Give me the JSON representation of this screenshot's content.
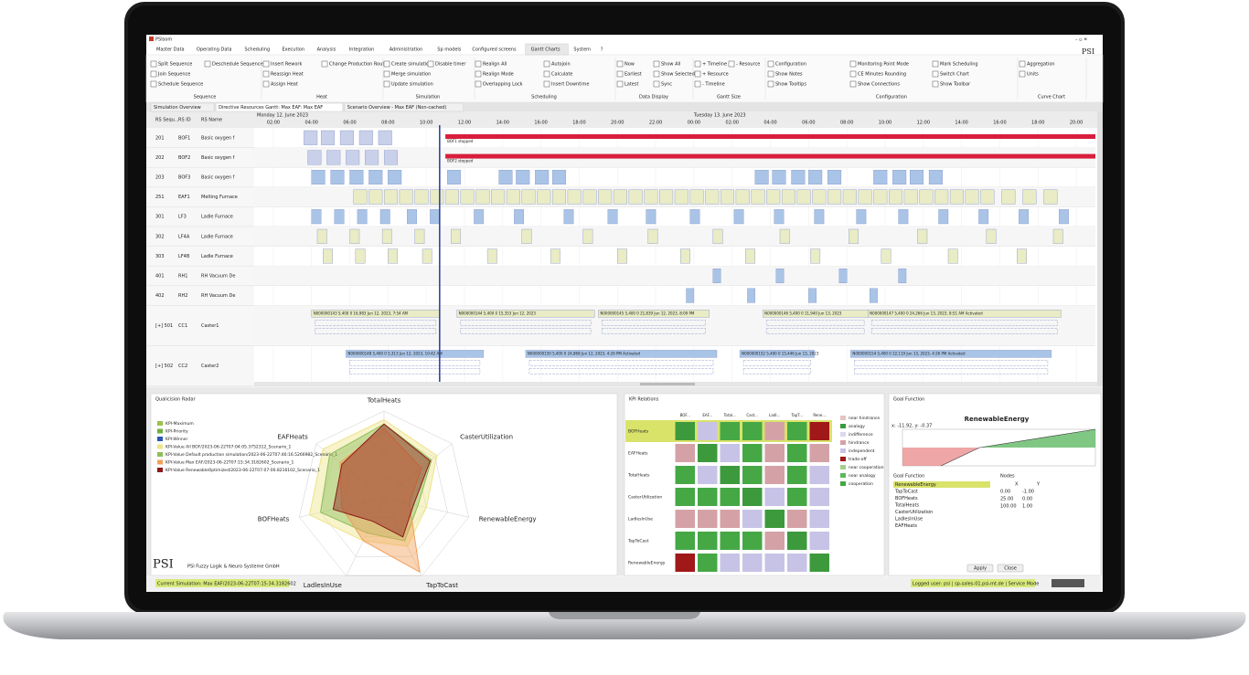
{
  "window": {
    "title": "PSIsom"
  },
  "menu": {
    "tabs": [
      "Master Data",
      "Operating Data",
      "Scheduling",
      "Execution",
      "Analysis",
      "Integration",
      "Administration",
      "Sp models",
      "Configured screens",
      "Gantt Charts",
      "System",
      "?"
    ],
    "active": 9
  },
  "ribbon": {
    "groups": [
      {
        "label": "Sequence",
        "items": [
          "Split Sequence",
          "Join Sequence",
          "Schedule Sequence",
          "Deschedule Sequence"
        ]
      },
      {
        "label": "Heat",
        "items": [
          "Insert Rework",
          "Reassign Heat",
          "Assign Heat",
          "Change Production Route"
        ]
      },
      {
        "label": "Simulation",
        "items": [
          "Create simulation",
          "Merge simulation",
          "Update simulation",
          "Disable timer"
        ]
      },
      {
        "label": "Scheduling",
        "items": [
          "Realign All",
          "Realign Mode",
          "Overlapping Lock",
          "Autojoin",
          "Calculate",
          "Insert Downtime"
        ]
      },
      {
        "label": "Data Display",
        "items": [
          "Now",
          "Earliest",
          "Latest",
          "Show All",
          "Show Selected",
          "Sync"
        ]
      },
      {
        "label": "Gantt Size",
        "items": [
          "+ Timeline",
          "+ Resource",
          "- Timeline",
          "- Resource"
        ]
      },
      {
        "label": "Configuration",
        "items": [
          "Configuration",
          "Show Notes",
          "Show Tooltips",
          "Monitoring Point Mode",
          "CE Minutes Rounding",
          "Show Connections",
          "Mark Scheduling",
          "Switch Chart",
          "Show Toolbar"
        ]
      },
      {
        "label": "Curve Chart",
        "items": [
          "Aggregation",
          "Units"
        ]
      }
    ]
  },
  "tabs": [
    "Simulation Overview",
    "Directive Resources Gantt: Max EAF: Max EAF",
    "Scenario Overview - Max EAF (Non-cached)"
  ],
  "gantt": {
    "columns": [
      "RS Sequ...",
      "RS ID",
      "RS Name"
    ],
    "dates": [
      "Monday 12. June 2023",
      "Tuesday 13. June 2023"
    ],
    "xlim": [
      1,
      45
    ],
    "now": 10.7,
    "ticks": [
      {
        "value": 2,
        "label": "02:00"
      },
      {
        "value": 4,
        "label": "04:00"
      },
      {
        "value": 6,
        "label": "06:00"
      },
      {
        "value": 8,
        "label": "08:00"
      },
      {
        "value": 10,
        "label": "10:00"
      },
      {
        "value": 12,
        "label": "12:00"
      },
      {
        "value": 14,
        "label": "14:00"
      },
      {
        "value": 16,
        "label": "16:00"
      },
      {
        "value": 18,
        "label": "18:00"
      },
      {
        "value": 20,
        "label": "20:00"
      },
      {
        "value": 22,
        "label": "22:00"
      },
      {
        "value": 24,
        "label": "00:00"
      },
      {
        "value": 26,
        "label": "02:00"
      },
      {
        "value": 28,
        "label": "04:00"
      },
      {
        "value": 30,
        "label": "06:00"
      },
      {
        "value": 32,
        "label": "08:00"
      },
      {
        "value": 34,
        "label": "10:00"
      },
      {
        "value": 36,
        "label": "12:00"
      },
      {
        "value": 38,
        "label": "14:00"
      },
      {
        "value": 40,
        "label": "16:00"
      },
      {
        "value": 42,
        "label": "18:00"
      },
      {
        "value": 44,
        "label": "20:00"
      }
    ],
    "rows": [
      {
        "seq": "201",
        "id": "BOF1",
        "name": "Basic oxygen f",
        "color": "#c9d0ea",
        "tasks": [
          [
            3.6,
            4.3
          ],
          [
            4.5,
            5.2
          ],
          [
            5.5,
            6.2
          ],
          [
            6.5,
            7.2
          ],
          [
            7.5,
            8.2
          ]
        ],
        "stop": [
          11,
          45
        ],
        "stop_label": "BOF1 stopped"
      },
      {
        "seq": "202",
        "id": "BOF2",
        "name": "Basic oxygen f",
        "color": "#c9d0ea",
        "tasks": [
          [
            3.8,
            4.5
          ],
          [
            4.8,
            5.5
          ],
          [
            5.8,
            6.5
          ],
          [
            6.8,
            7.5
          ],
          [
            7.8,
            8.5
          ]
        ],
        "stop": [
          11,
          45
        ],
        "stop_label": "BOF2 stopped"
      },
      {
        "seq": "203",
        "id": "BOF3",
        "name": "Basic oxygen f",
        "color": "#a9c4e6",
        "tasks": [
          [
            4.0,
            4.7
          ],
          [
            5.0,
            5.7
          ],
          [
            6.0,
            6.7
          ],
          [
            7.0,
            7.7
          ],
          [
            8.0,
            8.7
          ],
          [
            11.1,
            11.8
          ],
          [
            13.8,
            14.5
          ],
          [
            14.7,
            15.4
          ],
          [
            15.7,
            16.4
          ],
          [
            16.6,
            17.3
          ],
          [
            27.2,
            27.9
          ],
          [
            28.1,
            28.8
          ],
          [
            29.1,
            29.8
          ],
          [
            30.0,
            30.7
          ],
          [
            31.0,
            31.7
          ],
          [
            33.4,
            34.1
          ],
          [
            34.4,
            35.1
          ],
          [
            35.3,
            36.0
          ],
          [
            36.3,
            37.0
          ]
        ]
      },
      {
        "seq": "251",
        "id": "EAF1",
        "name": "Melting Furnace",
        "color": "#e9ecc4",
        "tasks": [
          [
            6.2,
            6.9
          ],
          [
            7.0,
            7.7
          ],
          [
            7.8,
            8.5
          ],
          [
            8.6,
            9.3
          ],
          [
            9.4,
            10.1
          ],
          [
            10.2,
            10.9
          ],
          [
            11.0,
            11.7
          ],
          [
            11.8,
            12.5
          ],
          [
            12.6,
            13.3
          ],
          [
            13.4,
            14.1
          ],
          [
            14.2,
            14.9
          ],
          [
            15.0,
            15.7
          ],
          [
            15.8,
            16.5
          ],
          [
            16.6,
            17.3
          ],
          [
            17.4,
            18.1
          ],
          [
            18.2,
            18.9
          ],
          [
            19.0,
            19.7
          ],
          [
            19.8,
            20.5
          ],
          [
            20.6,
            21.3
          ],
          [
            21.4,
            22.1
          ],
          [
            22.2,
            22.9
          ],
          [
            23.0,
            23.7
          ],
          [
            23.8,
            24.5
          ],
          [
            24.6,
            25.3
          ],
          [
            25.4,
            26.1
          ],
          [
            26.2,
            26.9
          ],
          [
            27.0,
            27.7
          ],
          [
            27.8,
            28.5
          ],
          [
            28.6,
            29.3
          ],
          [
            29.4,
            30.1
          ],
          [
            30.2,
            30.9
          ],
          [
            31.0,
            31.7
          ],
          [
            31.8,
            32.5
          ],
          [
            32.6,
            33.3
          ],
          [
            33.4,
            34.1
          ],
          [
            34.2,
            34.9
          ],
          [
            35.0,
            35.7
          ],
          [
            35.8,
            36.5
          ],
          [
            36.6,
            37.3
          ],
          [
            37.4,
            38.1
          ],
          [
            38.2,
            38.9
          ],
          [
            39.0,
            39.7
          ],
          [
            40.1,
            40.8
          ],
          [
            41.2,
            41.9
          ],
          [
            42.3,
            43.0
          ]
        ]
      },
      {
        "seq": "301",
        "id": "LF3",
        "name": "Ladle Furnace",
        "color": "#a9c4e6",
        "tasks": [
          [
            4.0,
            4.5
          ],
          [
            5.2,
            5.7
          ],
          [
            6.4,
            6.9
          ],
          [
            7.6,
            8.1
          ],
          [
            9.0,
            9.5
          ],
          [
            10.2,
            10.7
          ],
          [
            12.5,
            13.0
          ],
          [
            14.6,
            15.1
          ],
          [
            17.2,
            17.7
          ],
          [
            19.5,
            20.0
          ],
          [
            21.5,
            22.0
          ],
          [
            23.8,
            24.3
          ],
          [
            26.1,
            26.6
          ],
          [
            28.2,
            28.7
          ],
          [
            30.3,
            30.8
          ],
          [
            32.5,
            33.0
          ],
          [
            34.7,
            35.2
          ],
          [
            36.8,
            37.3
          ],
          [
            38.9,
            39.4
          ],
          [
            41.0,
            41.5
          ],
          [
            43.1,
            43.6
          ]
        ]
      },
      {
        "seq": "302",
        "id": "LF4A",
        "name": "Ladle Furnace",
        "color": "#e9ecc4",
        "tasks": [
          [
            4.3,
            4.8
          ],
          [
            6.0,
            6.5
          ],
          [
            7.7,
            8.2
          ],
          [
            9.4,
            9.9
          ],
          [
            11.3,
            11.8
          ],
          [
            15.0,
            15.5
          ],
          [
            18.2,
            18.7
          ],
          [
            21.6,
            22.1
          ],
          [
            25.0,
            25.5
          ],
          [
            28.5,
            29.0
          ],
          [
            32.1,
            32.6
          ],
          [
            35.7,
            36.2
          ],
          [
            39.3,
            39.8
          ],
          [
            42.8,
            43.3
          ]
        ]
      },
      {
        "seq": "303",
        "id": "LF4B",
        "name": "Ladle Furnace",
        "color": "#e9ecc4",
        "tasks": [
          [
            4.6,
            5.1
          ],
          [
            6.3,
            6.8
          ],
          [
            8.0,
            8.5
          ],
          [
            9.8,
            10.3
          ],
          [
            13.2,
            13.7
          ],
          [
            16.5,
            17.0
          ],
          [
            20.0,
            20.5
          ],
          [
            23.3,
            23.8
          ],
          [
            26.7,
            27.2
          ],
          [
            30.1,
            30.6
          ],
          [
            33.8,
            34.3
          ],
          [
            37.3,
            37.8
          ],
          [
            40.9,
            41.4
          ]
        ]
      },
      {
        "seq": "401",
        "id": "RH1",
        "name": "RH Vacuum De",
        "color": "#a9c4e6",
        "tasks": [
          [
            25.0,
            25.4
          ],
          [
            28.3,
            28.7
          ],
          [
            31.6,
            32.0
          ],
          [
            34.7,
            35.1
          ]
        ]
      },
      {
        "seq": "402",
        "id": "RH2",
        "name": "RH Vacuum De",
        "color": "#a9c4e6",
        "tasks": [
          [
            23.6,
            24.0
          ],
          [
            26.8,
            27.2
          ],
          [
            30.0,
            30.4
          ],
          [
            33.2,
            33.6
          ]
        ]
      },
      {
        "seq": "[+] 501",
        "id": "CC1",
        "name": "Caster1",
        "color": "#e9ecc4",
        "tasks": [
          [
            4.0,
            10.7
          ],
          [
            11.6,
            18.8
          ],
          [
            19.0,
            24.8
          ],
          [
            27.6,
            33.1
          ],
          [
            33.1,
            43.2
          ]
        ],
        "labels": [
          "N000000143 5,400 0 16,983 Jun 12, 2023, 7:54 AM",
          "N000000144 5,400 0 15,353 Jun 12, 2023",
          "N000000145 5,400 0 21,839 Jun 12, 2023, 8:09 PM",
          "N000000146 5,400 0 11,940 Jun 13, 2023",
          "N000000147 5,400 0 24,266 Jun 13, 2023, 8:51 AM Activated"
        ]
      },
      {
        "seq": "[+] 502",
        "id": "CC2",
        "name": "Caster2",
        "color": "#a9c4e6",
        "tasks": [
          [
            5.8,
            13.0
          ],
          [
            15.2,
            25.2
          ],
          [
            26.4,
            30.3
          ],
          [
            32.2,
            42.7
          ]
        ],
        "labels": [
          "N000000148 5,400 0 5,313 Jun 12, 2023, 10:42 AM",
          "N000000150 5,400 0 24,868 Jun 12, 2023, 4:26 PM Activated",
          "N000000152 5,400 0 15,446 Jun 13, 2023",
          "N000000154 5,400 0 22,119 Jun 13, 2023, 4:26 PM Activated"
        ]
      }
    ]
  },
  "radar": {
    "panel": "Qualicision Radar",
    "axes": [
      "TotalHeats",
      "CasterUtilization",
      "RenewableEnergy",
      "TapToCast",
      "LadlesInUse",
      "BOFHeats",
      "EAFHeats"
    ],
    "rlim": [
      0,
      1
    ],
    "legend": [
      {
        "name": "KPI-Maximum",
        "color": "#9cc14a"
      },
      {
        "name": "KPI-Priority",
        "color": "#6fae3c"
      },
      {
        "name": "KPI-Winner",
        "color": "#2957b8"
      },
      {
        "name": "KPI-Value All BOF/2023-06-22T07:04:05.3752312_Scenario_1",
        "color": "#eee48a",
        "values": [
          0.9,
          0.78,
          0.5,
          0.62,
          0.55,
          0.88,
          0.9
        ]
      },
      {
        "name": "KPI-Value Default production simulation/2023-06-22T07:46:16.5266982_Scenario_1",
        "color": "#8cbf5a",
        "values": [
          0.85,
          0.7,
          0.4,
          0.55,
          0.45,
          0.75,
          0.8
        ]
      },
      {
        "name": "KPI-Value Max EAF/2023-06-22T07:15:34.3182602_Scenario_1",
        "color": "#f2a05a",
        "values": [
          0.8,
          0.55,
          0.3,
          0.95,
          0.55,
          0.5,
          0.65
        ]
      },
      {
        "name": "KPI-Value RenewableOptimized/2023-06-22T07:07:00.8216102_Scenario_1",
        "color": "#8b1a1a",
        "values": [
          0.85,
          0.68,
          0.35,
          0.5,
          0.3,
          0.6,
          0.62
        ]
      }
    ],
    "company": "PSI Fuzzy Logik & Neuro Systeme GmbH",
    "logo": "PSI"
  },
  "kpi": {
    "panel": "KPI Relations",
    "columns": [
      "BOF...",
      "EAF...",
      "Total...",
      "Cast...",
      "Ladl...",
      "TapT...",
      "Rene..."
    ],
    "rows": [
      "BOFHeats",
      "EAFHeats",
      "TotalHeats",
      "CasterUtilization",
      "LadlesInUse",
      "TapToCast",
      "RenewableEnergy"
    ],
    "legend": [
      {
        "name": "near hindrance",
        "color": "#e6c3c3"
      },
      {
        "name": "analogy",
        "color": "#3c9a3c"
      },
      {
        "name": "indifference",
        "color": "#dcd8ee"
      },
      {
        "name": "hindrance",
        "color": "#d4a2a6"
      },
      {
        "name": "independent",
        "color": "#c7c3e6"
      },
      {
        "name": "trade-off",
        "color": "#a01818"
      },
      {
        "name": "near cooperation",
        "color": "#9ed08a"
      },
      {
        "name": "near analogy",
        "color": "#5cb85c"
      },
      {
        "name": "cooperation",
        "color": "#45a845"
      }
    ],
    "cells": [
      [
        1,
        4,
        8,
        8,
        3,
        8,
        5
      ],
      [
        3,
        1,
        4,
        8,
        3,
        8,
        3
      ],
      [
        8,
        4,
        1,
        8,
        3,
        8,
        4
      ],
      [
        8,
        8,
        8,
        1,
        4,
        8,
        4
      ],
      [
        3,
        3,
        3,
        4,
        1,
        3,
        4
      ],
      [
        8,
        8,
        8,
        8,
        3,
        1,
        4
      ],
      [
        5,
        8,
        4,
        4,
        4,
        4,
        1
      ]
    ]
  },
  "goal": {
    "panel": "Goal Function",
    "title": "RenewableEnergy",
    "cursor": "x: -11.92, y: -0.37",
    "xlim": [
      -25,
      100
    ],
    "ylim": [
      -1,
      1
    ],
    "list_title": "Goal Function",
    "list": [
      "RenewableEnergy",
      "TapToCast",
      "BOFHeats",
      "TotalHeats",
      "CasterUtilization",
      "LadlesInUse",
      "EAFHeats"
    ],
    "nodes_title": "Nodes",
    "node_columns": [
      "X",
      "Y"
    ],
    "nodes": [
      [
        {
          "value": 0,
          "label": "0.00"
        },
        {
          "value": -1,
          "label": "-1.00"
        }
      ],
      [
        {
          "value": 25,
          "label": "25.00"
        },
        {
          "value": 0,
          "label": "0.00"
        }
      ],
      [
        {
          "value": 100,
          "label": "100.00"
        },
        {
          "value": 1,
          "label": "1.00"
        }
      ]
    ],
    "buttons": [
      "Apply",
      "Close"
    ]
  },
  "status": {
    "simulation": "Current Simulation:  Max EAF/2023-06-22T07:15:34.3182602",
    "user": "Logged user: psi | sp-sales-01.psi-mt.de | Service Mode"
  }
}
